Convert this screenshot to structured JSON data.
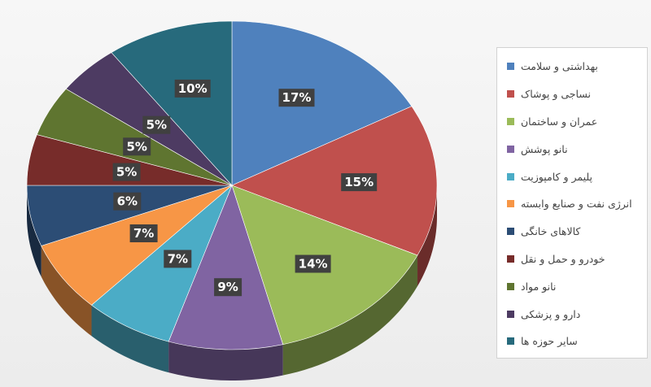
{
  "chart_data": {
    "type": "pie",
    "title": "",
    "legend_position": "right",
    "slices": [
      {
        "label": "بهداشتی و سلامت",
        "value": 17,
        "value_label": "17%",
        "color": "#4f81bd"
      },
      {
        "label": "نساجی و پوشاک",
        "value": 15,
        "value_label": "15%",
        "color": "#c0504d"
      },
      {
        "label": "عمران و ساختمان",
        "value": 14,
        "value_label": "14%",
        "color": "#9bbb59"
      },
      {
        "label": "نانو پوشش",
        "value": 9,
        "value_label": "9%",
        "color": "#8064a2"
      },
      {
        "label": "پلیمر و کامپوزیت",
        "value": 7,
        "value_label": "7%",
        "color": "#4bacc6"
      },
      {
        "label": "انرژی نفت و صنایع وابسته",
        "value": 7,
        "value_label": "7%",
        "color": "#f79646"
      },
      {
        "label": "کالاهای خانگی",
        "value": 6,
        "value_label": "6%",
        "color": "#2c4d75"
      },
      {
        "label": "خودرو و حمل و نقل",
        "value": 5,
        "value_label": "5%",
        "color": "#772c2a"
      },
      {
        "label": "نانو مواد",
        "value": 5,
        "value_label": "5%",
        "color": "#5f7530"
      },
      {
        "label": "دارو و پزشکی",
        "value": 5,
        "value_label": "5%",
        "color": "#4d3b62"
      },
      {
        "label": "سایر حوزه ها",
        "value": 10,
        "value_label": "10%",
        "color": "#276a7c"
      }
    ]
  }
}
